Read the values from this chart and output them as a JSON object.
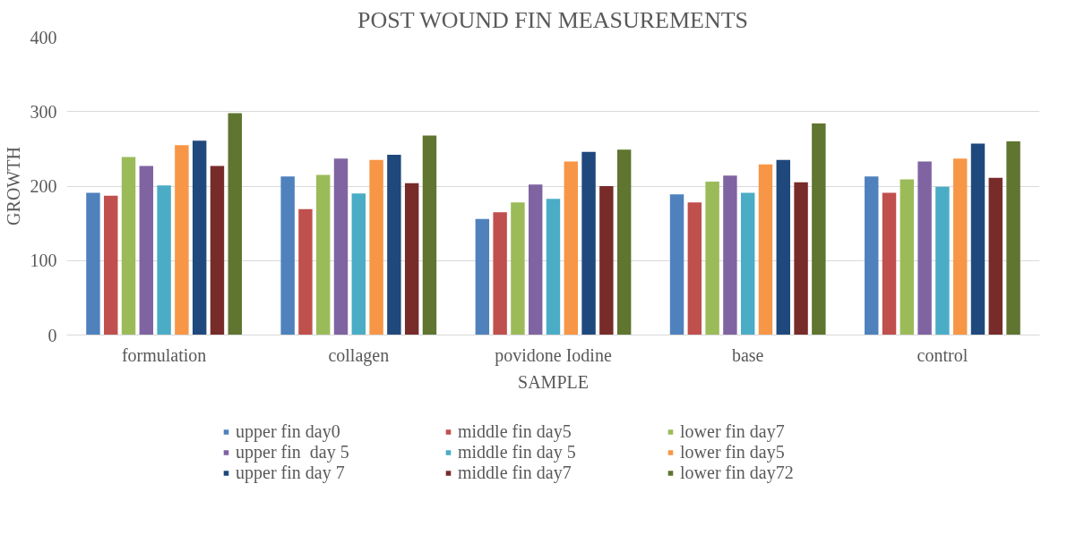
{
  "chart_data": {
    "type": "bar",
    "title": "POST WOUND FIN MEASUREMENTS",
    "xlabel": "SAMPLE",
    "ylabel": "GROWTH",
    "categories": [
      "formulation",
      "collagen",
      "povidone Iodine",
      "base",
      "control"
    ],
    "ylim": [
      0,
      400
    ],
    "yticks": [
      0,
      100,
      200,
      300,
      400
    ],
    "grid": "y",
    "legend": "bottom",
    "series": [
      {
        "name": "upper fin day0",
        "color": "#4f81bd",
        "values": [
          191,
          213,
          156,
          189,
          213
        ]
      },
      {
        "name": "middle fin day5",
        "color": "#c0504d",
        "values": [
          187,
          169,
          165,
          178,
          191
        ]
      },
      {
        "name": "lower fin day7",
        "color": "#9bbb59",
        "values": [
          239,
          215,
          178,
          206,
          209
        ]
      },
      {
        "name": "upper fin  day 5",
        "color": "#8064a2",
        "values": [
          227,
          237,
          202,
          214,
          233
        ]
      },
      {
        "name": "middle fin day 5",
        "color": "#4bacc6",
        "values": [
          201,
          190,
          183,
          191,
          199
        ]
      },
      {
        "name": "lower fin day5",
        "color": "#f79646",
        "values": [
          255,
          235,
          233,
          229,
          237
        ]
      },
      {
        "name": "upper fin day 7",
        "color": "#1f497d",
        "values": [
          261,
          242,
          246,
          235,
          257
        ]
      },
      {
        "name": "middle fin day7",
        "color": "#772c2a",
        "values": [
          227,
          204,
          200,
          205,
          211
        ]
      },
      {
        "name": "lower fin day72",
        "color": "#5f7530",
        "values": [
          298,
          268,
          249,
          284,
          260
        ]
      }
    ]
  }
}
